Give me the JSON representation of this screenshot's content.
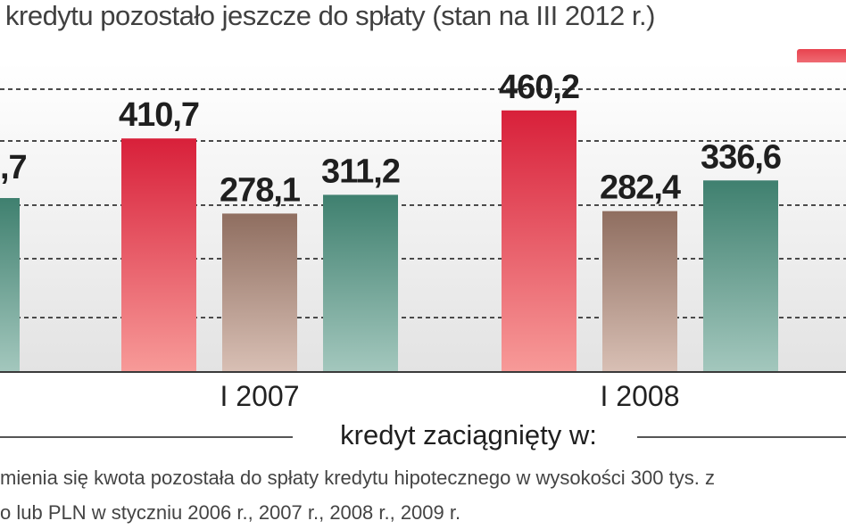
{
  "title": "kredytu pozostało jeszcze do spłaty (stan na III 2012 r.)",
  "colors": {
    "red_top": "#d8203a",
    "red_bottom": "#f79a98",
    "brown_top": "#8f6e60",
    "brown_bottom": "#d8bfb4",
    "teal_top": "#3f806f",
    "teal_bottom": "#a3c7bd",
    "grid": "#4a4a4a",
    "plot_bg_bottom": "#e3e3e3"
  },
  "chart_data": {
    "type": "bar",
    "title": "kredytu pozostało jeszcze do spłaty (stan na III 2012 r.)",
    "xlabel": "kredyt zaciągnięty w:",
    "ylabel": "",
    "ylim": [
      0,
      520
    ],
    "grid": true,
    "visible_partial_label": ",7",
    "groups": [
      {
        "category": "I 2007",
        "bars": [
          {
            "value": 410.7,
            "label": "410,7",
            "color_key": "red"
          },
          {
            "value": 278.1,
            "label": "278,1",
            "color_key": "brown"
          },
          {
            "value": 311.2,
            "label": "311,2",
            "color_key": "teal"
          }
        ]
      },
      {
        "category": "I 2008",
        "bars": [
          {
            "value": 460.2,
            "label": "460,2",
            "color_key": "red"
          },
          {
            "value": 282.4,
            "label": "282,4",
            "color_key": "brown"
          },
          {
            "value": 336.6,
            "label": "336,6",
            "color_key": "teal"
          }
        ]
      }
    ]
  },
  "notes": {
    "line1": "mienia się kwota pozostała do spłaty  kredytu hipotecznego w wysokości 300 tys. z",
    "line2": "o lub PLN w styczniu 2006 r., 2007 r., 2008 r., 2009 r."
  }
}
